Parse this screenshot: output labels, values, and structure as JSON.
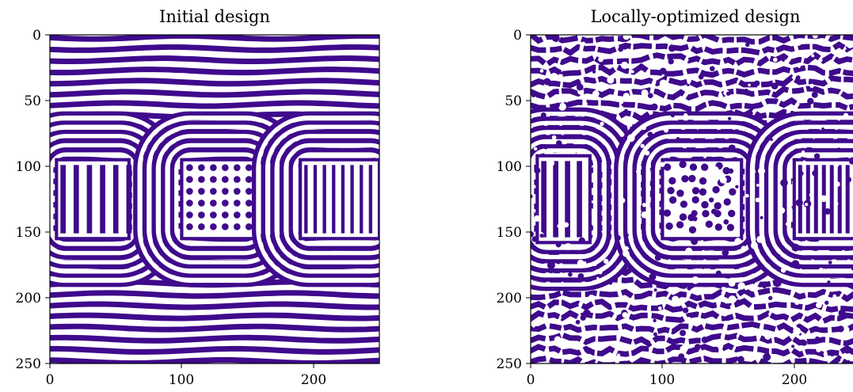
{
  "palette": {
    "pattern": "#3f0a8c",
    "background": "#ffffff"
  },
  "chart_data": [
    {
      "type": "heatmap",
      "title": "Initial design",
      "xlabel": "",
      "ylabel": "",
      "xlim": [
        0,
        250
      ],
      "ylim": [
        250,
        0
      ],
      "x_ticks": [
        0,
        100,
        200
      ],
      "y_ticks": [
        0,
        50,
        100,
        150,
        200,
        250
      ],
      "x_tick_labels": [
        "0",
        "100",
        "200"
      ],
      "y_tick_labels": [
        "0",
        "50",
        "100",
        "150",
        "200",
        "250"
      ],
      "grid": false,
      "values": "binary material mask (purple / white)",
      "regions": [
        {
          "pattern": "vertical-bars",
          "x": [
            5,
            60
          ],
          "y": [
            95,
            155
          ]
        },
        {
          "pattern": "dot-array",
          "x": [
            100,
            155
          ],
          "y": [
            95,
            155
          ]
        },
        {
          "pattern": "vertical-bars",
          "x": [
            190,
            250
          ],
          "y": [
            95,
            155
          ]
        }
      ]
    },
    {
      "type": "heatmap",
      "title": "Locally-optimized design",
      "xlabel": "",
      "ylabel": "",
      "xlim": [
        0,
        250
      ],
      "ylim": [
        250,
        0
      ],
      "x_ticks": [
        0,
        100,
        200
      ],
      "y_ticks": [
        0,
        50,
        100,
        150,
        200,
        250
      ],
      "x_tick_labels": [
        "0",
        "100",
        "200"
      ],
      "y_tick_labels": [
        "0",
        "50",
        "100",
        "150",
        "200",
        "250"
      ],
      "grid": false,
      "values": "binary material mask (purple / white), perturbed",
      "regions": [
        {
          "pattern": "vertical-bars",
          "x": [
            5,
            45
          ],
          "y": [
            90,
            160
          ]
        },
        {
          "pattern": "irregular-dots",
          "x": [
            100,
            160
          ],
          "y": [
            95,
            155
          ]
        },
        {
          "pattern": "vertical-bars",
          "x": [
            200,
            250
          ],
          "y": [
            95,
            155
          ]
        }
      ]
    }
  ]
}
